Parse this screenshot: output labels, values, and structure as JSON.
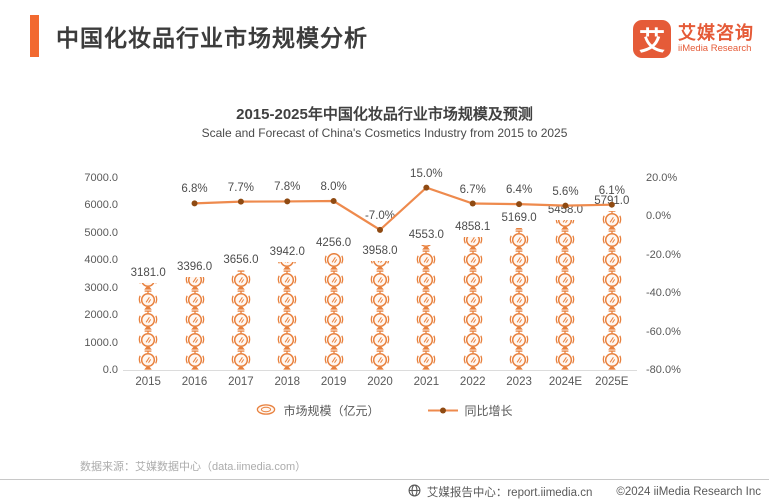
{
  "header": {
    "title": "中国化妆品行业市场规模分析",
    "logo": {
      "symbol": "艾",
      "name_cn": "艾媒咨询",
      "name_en": "iiMedia Research"
    }
  },
  "chart_data": {
    "type": "bar+line",
    "title": "2015-2025年中国化妆品行业市场规模及预测",
    "subtitle": "Scale and Forecast of China's Cosmetics Industry from 2015 to 2025",
    "categories": [
      "2015",
      "2016",
      "2017",
      "2018",
      "2019",
      "2020",
      "2021",
      "2022",
      "2023",
      "2024E",
      "2025E"
    ],
    "series": [
      {
        "name": "市场规模（亿元）",
        "type": "bar",
        "values": [
          3181.0,
          3396.0,
          3656.0,
          3942.0,
          4256.0,
          3958.0,
          4553.0,
          4858.1,
          5169.0,
          5458.0,
          5791.0
        ]
      },
      {
        "name": "同比增长",
        "type": "line",
        "values": [
          null,
          6.8,
          7.7,
          7.8,
          8.0,
          -7.0,
          15.0,
          6.7,
          6.4,
          5.6,
          6.1
        ]
      }
    ],
    "y_axis_left": {
      "ticks": [
        "0.0",
        "1000.0",
        "2000.0",
        "3000.0",
        "4000.0",
        "5000.0",
        "6000.0",
        "7000.0"
      ],
      "min": 0,
      "max": 7000
    },
    "y_axis_right": {
      "ticks": [
        "20.0%",
        "0.0%",
        "-20.0%",
        "-40.0%",
        "-60.0%",
        "-80.0%"
      ],
      "min": -80,
      "max": 20
    },
    "legend_position": "bottom",
    "grid": false
  },
  "legend": {
    "bar_label": "市场规模（亿元）",
    "line_label": "同比增长"
  },
  "source": "数据来源：艾媒数据中心（data.iimedia.com）",
  "footer": {
    "report_center": "艾媒报告中心：report.iimedia.cn",
    "copyright": "©2024  iiMedia Research Inc"
  },
  "colors": {
    "accent": "#F26930",
    "logo": "#E55B38",
    "coin": "#E8813E",
    "coin_fill": "#FFF7F1",
    "line": "#EE8A4D",
    "dot": "#8F4A12",
    "label_text": "#4D4D4D",
    "axis_text": "#595959"
  }
}
